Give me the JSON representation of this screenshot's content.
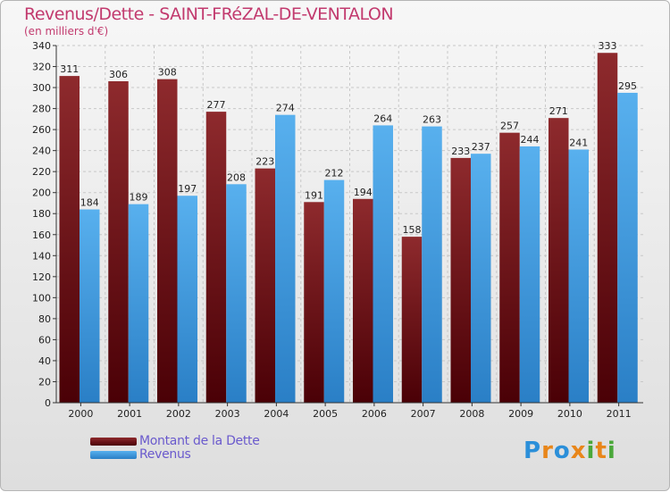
{
  "title": "Revenus/Dette - SAINT-FRéZAL-DE-VENTALON",
  "subtitle": "(en milliers d'€)",
  "legend": [
    {
      "label": "Montant de la Dette",
      "color": "#6b0d10"
    },
    {
      "label": "Revenus",
      "color": "#3f9fe4"
    }
  ],
  "logo": {
    "text": "Proxiti",
    "letters": [
      {
        "ch": "P",
        "color": "#2b8fd9"
      },
      {
        "ch": "r",
        "color": "#e8861a"
      },
      {
        "ch": "o",
        "color": "#2b8fd9"
      },
      {
        "ch": "x",
        "color": "#e8861a"
      },
      {
        "ch": "i",
        "color": "#4aa83a"
      },
      {
        "ch": "t",
        "color": "#e8861a"
      },
      {
        "ch": "i",
        "color": "#4aa83a"
      }
    ]
  },
  "chart_data": {
    "type": "bar",
    "title": "Revenus/Dette - SAINT-FRéZAL-DE-VENTALON",
    "ylabel": "(en milliers d'€)",
    "xlabel": "",
    "categories": [
      "2000",
      "2001",
      "2002",
      "2003",
      "2004",
      "2005",
      "2006",
      "2007",
      "2008",
      "2009",
      "2010",
      "2011"
    ],
    "series": [
      {
        "name": "Montant de la Dette",
        "values": [
          311,
          306,
          308,
          277,
          223,
          191,
          194,
          158,
          233,
          257,
          271,
          333
        ]
      },
      {
        "name": "Revenus",
        "values": [
          184,
          189,
          197,
          208,
          274,
          212,
          264,
          263,
          237,
          244,
          241,
          295
        ]
      }
    ],
    "ylim": [
      0,
      340
    ],
    "yticks": [
      0,
      20,
      40,
      60,
      80,
      100,
      120,
      140,
      160,
      180,
      200,
      220,
      240,
      260,
      280,
      300,
      320,
      340
    ],
    "grid": true
  }
}
